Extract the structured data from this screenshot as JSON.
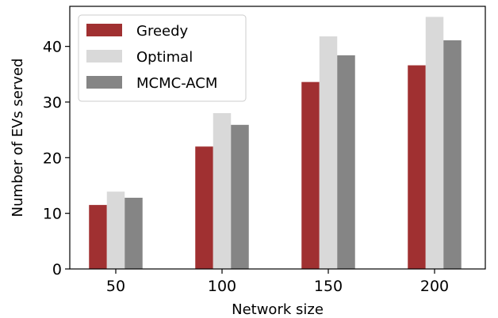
{
  "chart_data": {
    "type": "bar",
    "categories": [
      "50",
      "100",
      "150",
      "200"
    ],
    "series": [
      {
        "name": "Greedy",
        "values": [
          11.5,
          22.0,
          33.6,
          36.6
        ],
        "color": "#a03031"
      },
      {
        "name": "Optimal",
        "values": [
          13.9,
          28.0,
          41.8,
          45.3
        ],
        "color": "#d9d9d9"
      },
      {
        "name": "MCMC-ACM",
        "values": [
          12.8,
          25.9,
          38.4,
          41.1
        ],
        "color": "#858585"
      }
    ],
    "title": "",
    "xlabel": "Network size",
    "ylabel": "Number of EVs served",
    "ylim": [
      0,
      47.2
    ],
    "yticks": [
      0,
      10,
      20,
      30,
      40
    ],
    "grid": false,
    "legend_position": "top-left"
  }
}
